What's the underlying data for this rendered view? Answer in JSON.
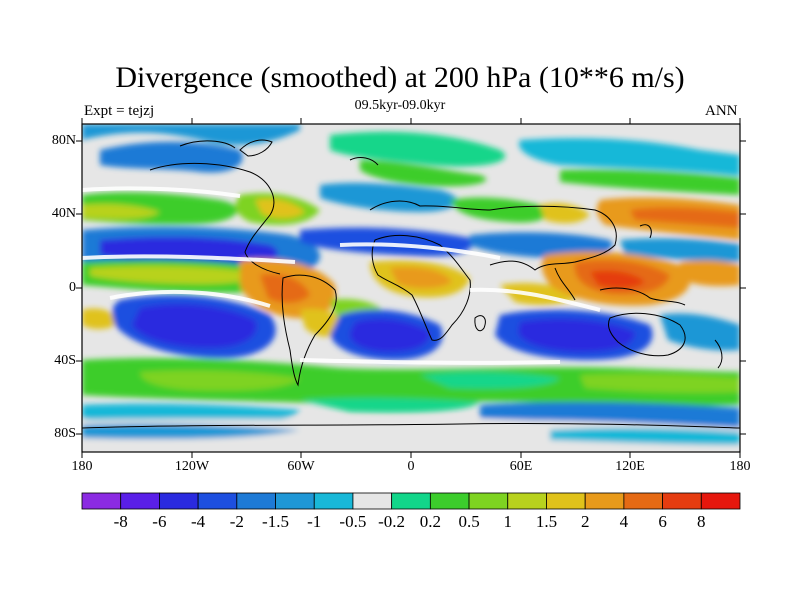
{
  "title": "Divergence (smoothed) at 200 hPa (10**6 m/s)",
  "subtitle": "09.5kyr-09.0kyr",
  "left_label": "Expt = tejzj",
  "right_label": "ANN",
  "lat_labels": [
    "80N",
    "40N",
    "0",
    "40S",
    "80S"
  ],
  "lon_labels": [
    "180",
    "120W",
    "60W",
    "0",
    "60E",
    "120E",
    "180"
  ],
  "colorbar": {
    "colors": [
      "#8b2be2",
      "#5a1fe8",
      "#2a2adf",
      "#1d4fe0",
      "#1e7ad6",
      "#1f97d6",
      "#19b8d8",
      "#e6e6e6",
      "#12d68a",
      "#3ccd2c",
      "#7ed321",
      "#b8d21e",
      "#e0c21a",
      "#e89a1a",
      "#e56a14",
      "#e53c10",
      "#e6170d"
    ],
    "labels": [
      "-8",
      "-6",
      "-4",
      "-2",
      "-1.5",
      "-1",
      "-0.5",
      "-0.2",
      "0.2",
      "0.5",
      "1",
      "1.5",
      "2",
      "4",
      "6",
      "8"
    ]
  }
}
